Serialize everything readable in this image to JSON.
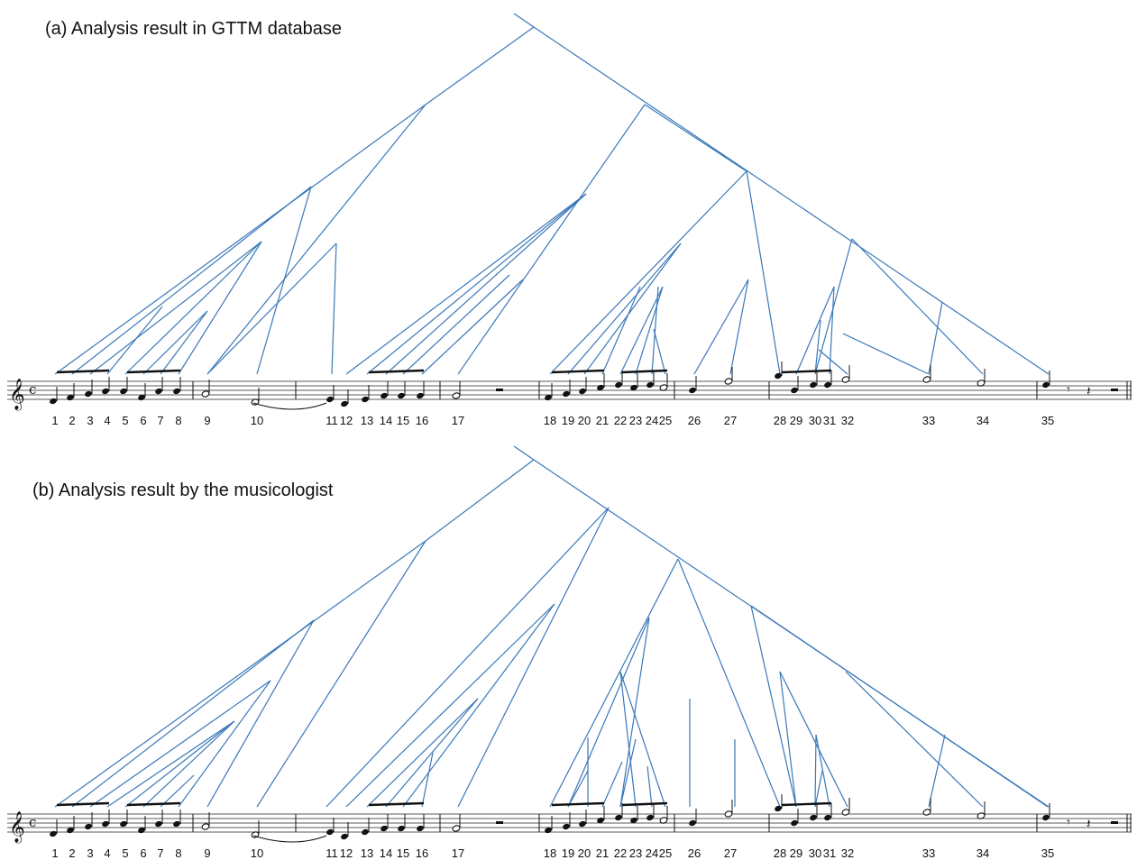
{
  "panels": [
    {
      "id": "a",
      "title": "(a) Analysis result in GTTM database"
    },
    {
      "id": "b",
      "title": "(b) Analysis result by the musicologist"
    }
  ],
  "note_numbers": [
    "1",
    "2",
    "3",
    "4",
    "5",
    "6",
    "7",
    "8",
    "9",
    "10",
    "11",
    "12",
    "13",
    "14",
    "15",
    "16",
    "17",
    "18",
    "19",
    "20",
    "21",
    "22",
    "23",
    "24",
    "25",
    "26",
    "27",
    "28",
    "29",
    "30",
    "31",
    "32",
    "33",
    "34",
    "35"
  ],
  "music": {
    "clef": "treble-clef",
    "time_signature": "c"
  },
  "colors": {
    "tree": "#3a78b8",
    "notation": "#111111"
  }
}
